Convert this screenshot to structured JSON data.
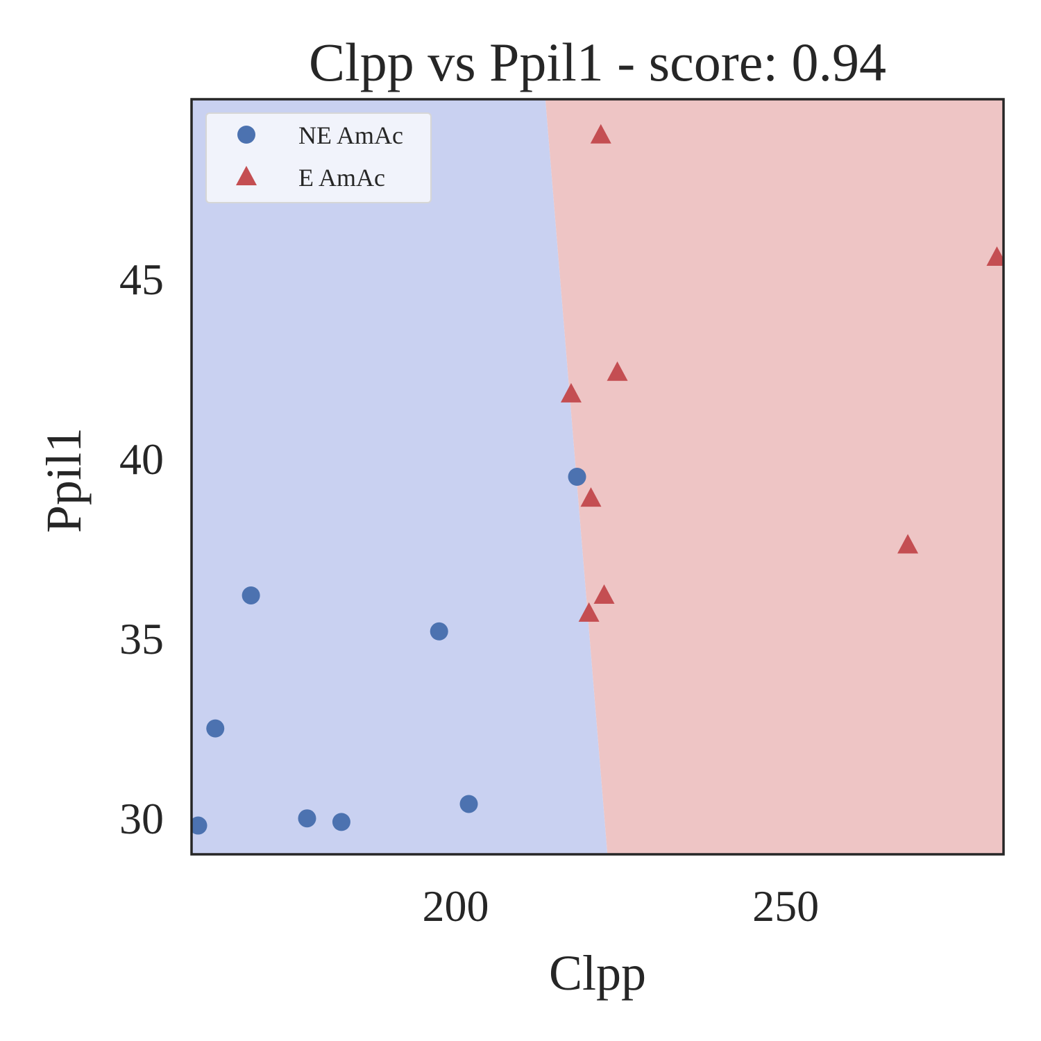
{
  "chart_data": {
    "type": "scatter",
    "title": "Clpp vs Ppil1 - score: 0.94",
    "xlabel": "Clpp",
    "ylabel": "Ppil1",
    "xlim": [
      160,
      283
    ],
    "ylim": [
      29,
      50
    ],
    "xticks": [
      {
        "value": 200,
        "label": "200"
      },
      {
        "value": 250,
        "label": "250"
      }
    ],
    "yticks": [
      {
        "value": 30,
        "label": "30"
      },
      {
        "value": 35,
        "label": "35"
      },
      {
        "value": 40,
        "label": "40"
      },
      {
        "value": 45,
        "label": "45"
      }
    ],
    "grid": false,
    "legend_position": "top-left",
    "decision_boundary": {
      "points": [
        [
          213.6,
          50
        ],
        [
          223.0,
          29
        ]
      ],
      "left_class": "NE AmAc",
      "right_class": "E AmAc",
      "left_color": "#c9d1f1",
      "right_color": "#eec5c5"
    },
    "series": [
      {
        "name": "NE AmAc",
        "marker": "circle",
        "color": "#4c72b0",
        "points": [
          [
            161,
            29.8
          ],
          [
            163.6,
            32.5
          ],
          [
            169,
            36.2
          ],
          [
            177.5,
            30.0
          ],
          [
            182.7,
            29.9
          ],
          [
            197.5,
            35.2
          ],
          [
            202,
            30.4
          ],
          [
            218.4,
            39.5
          ]
        ]
      },
      {
        "name": "E AmAc",
        "marker": "triangle",
        "color": "#c44e52",
        "points": [
          [
            222,
            49.0
          ],
          [
            282,
            45.6
          ],
          [
            224.5,
            42.4
          ],
          [
            217.5,
            41.8
          ],
          [
            220.5,
            38.9
          ],
          [
            268.5,
            37.6
          ],
          [
            222.5,
            36.2
          ],
          [
            220.2,
            35.7
          ]
        ]
      }
    ]
  }
}
